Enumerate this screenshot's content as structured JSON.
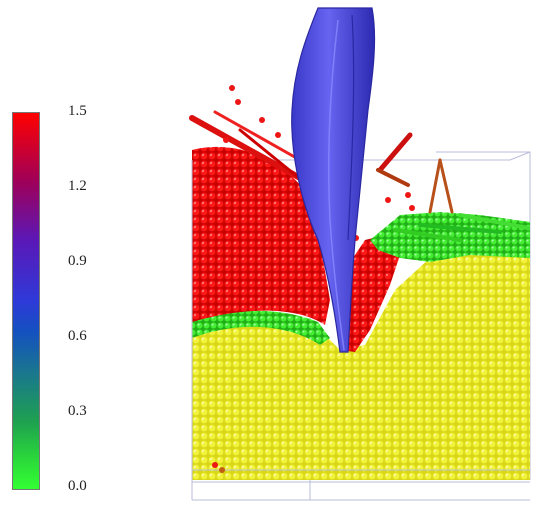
{
  "colorbar": {
    "ticks": [
      "1.5",
      "1.2",
      "0.9",
      "0.6",
      "0.3",
      "0.0"
    ],
    "range": [
      0.0,
      1.5
    ],
    "colors": {
      "max": "#ff0000",
      "mid_high": "#5a18b8",
      "mid": "#2e3ad8",
      "mid_low": "#1ea050",
      "min": "#33ff33"
    }
  },
  "scene": {
    "particle_colors": {
      "settled": "#e6e61e",
      "moving_fast": "#ff1a1a",
      "moving_slow": "#33dd22",
      "tool": "#4a48d8"
    },
    "box_outline_color": "#b8bcd8"
  }
}
